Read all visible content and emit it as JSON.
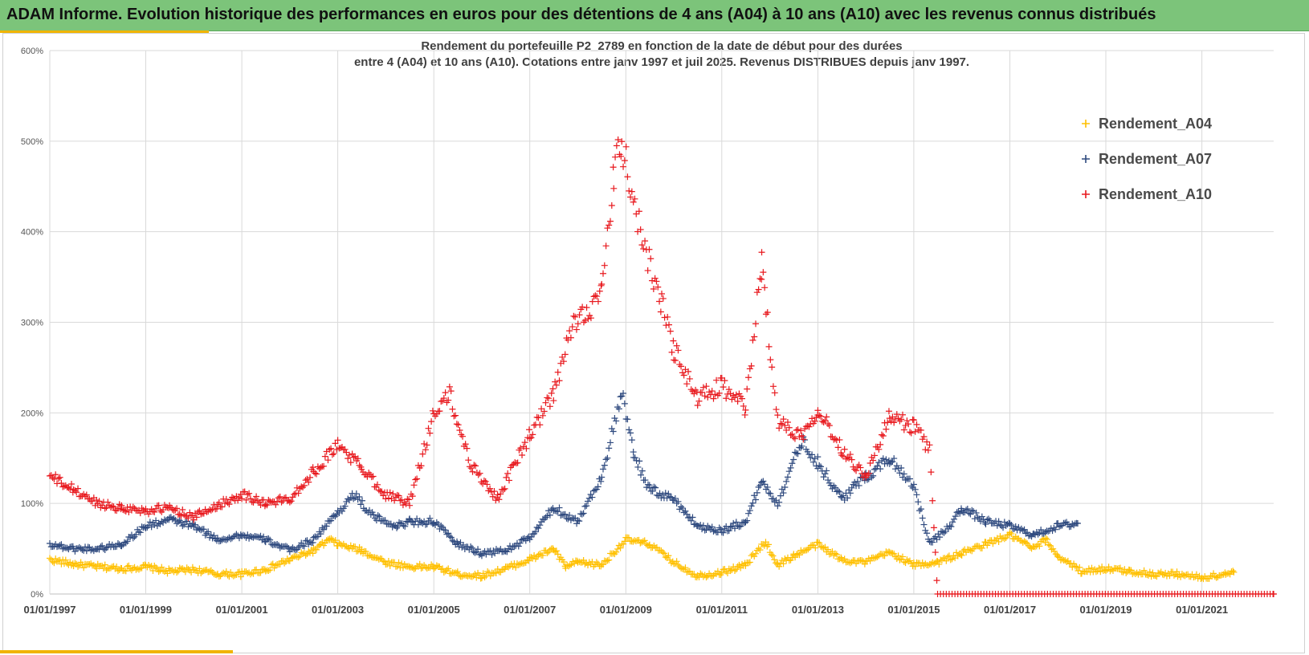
{
  "banner": {
    "title": "ADAM Informe. Evolution historique des performances en euros pour des détentions de 4 ans (A04) à 10 ans (A10) avec les revenus connus distribués"
  },
  "colors": {
    "banner": "#7cc47a",
    "accent": "#f0b400",
    "A04": "#ffc000",
    "A07": "#2f4a7f",
    "A10": "#e8191e"
  },
  "chart_data": {
    "type": "scatter",
    "title_lines": [
      "Rendement du portefeuille P2_2789 en fonction de la date de début pour des durées",
      "entre 4 (A04) et 10 ans (A10). Cotations  entre janv 1997 et juil 2025. Revenus DISTRIBUES depuis janv 1997."
    ],
    "xlabel": "",
    "ylabel": "",
    "xlim": [
      "01/01/1997",
      "01/07/2022"
    ],
    "ylim": [
      0,
      600
    ],
    "y_ticks": [
      0,
      100,
      200,
      300,
      400,
      500,
      600
    ],
    "y_tick_labels": [
      "0%",
      "100%",
      "200%",
      "300%",
      "400%",
      "500%",
      "600%"
    ],
    "x_ticks": [
      "01/01/1997",
      "01/01/1999",
      "01/01/2001",
      "01/01/2003",
      "01/01/2005",
      "01/01/2007",
      "01/01/2009",
      "01/01/2011",
      "01/01/2013",
      "01/01/2015",
      "01/01/2017",
      "01/01/2019",
      "01/01/2021"
    ],
    "grid": true,
    "legend_position": "top-right",
    "marker": "+",
    "series": [
      {
        "name": "Rendement_A04",
        "color": "#ffc000",
        "points": [
          [
            "1997-01-01",
            38
          ],
          [
            "1997-07-01",
            33
          ],
          [
            "1998-01-01",
            30
          ],
          [
            "1998-07-01",
            28
          ],
          [
            "1999-01-01",
            30
          ],
          [
            "1999-07-01",
            25
          ],
          [
            "2000-01-01",
            27
          ],
          [
            "2000-07-01",
            22
          ],
          [
            "2001-01-01",
            22
          ],
          [
            "2001-07-01",
            27
          ],
          [
            "2002-01-01",
            38
          ],
          [
            "2002-07-01",
            48
          ],
          [
            "2002-11-01",
            60
          ],
          [
            "2003-01-01",
            55
          ],
          [
            "2003-07-01",
            48
          ],
          [
            "2004-01-01",
            35
          ],
          [
            "2004-07-01",
            30
          ],
          [
            "2005-01-01",
            30
          ],
          [
            "2005-07-01",
            22
          ],
          [
            "2006-01-01",
            20
          ],
          [
            "2006-07-01",
            28
          ],
          [
            "2007-01-01",
            38
          ],
          [
            "2007-07-01",
            50
          ],
          [
            "2007-10-01",
            30
          ],
          [
            "2008-01-01",
            35
          ],
          [
            "2008-07-01",
            32
          ],
          [
            "2009-01-01",
            60
          ],
          [
            "2009-07-01",
            55
          ],
          [
            "2010-01-01",
            35
          ],
          [
            "2010-07-01",
            20
          ],
          [
            "2011-01-01",
            24
          ],
          [
            "2011-07-01",
            32
          ],
          [
            "2011-12-01",
            58
          ],
          [
            "2012-03-01",
            32
          ],
          [
            "2012-07-01",
            42
          ],
          [
            "2013-01-01",
            55
          ],
          [
            "2013-07-01",
            38
          ],
          [
            "2014-01-01",
            35
          ],
          [
            "2014-07-01",
            46
          ],
          [
            "2015-01-01",
            32
          ],
          [
            "2015-07-01",
            35
          ],
          [
            "2016-01-01",
            45
          ],
          [
            "2016-07-01",
            55
          ],
          [
            "2017-01-01",
            65
          ],
          [
            "2017-07-01",
            50
          ],
          [
            "2017-10-01",
            60
          ],
          [
            "2018-01-01",
            42
          ],
          [
            "2018-07-01",
            25
          ],
          [
            "2019-01-01",
            28
          ],
          [
            "2019-07-01",
            25
          ],
          [
            "2020-01-01",
            22
          ],
          [
            "2020-07-01",
            22
          ],
          [
            "2021-01-01",
            18
          ],
          [
            "2021-07-01",
            22
          ],
          [
            "2021-09-01",
            24
          ]
        ]
      },
      {
        "name": "Rendement_A07",
        "color": "#2f4a7f",
        "points": [
          [
            "1997-01-01",
            55
          ],
          [
            "1997-07-01",
            50
          ],
          [
            "1998-01-01",
            50
          ],
          [
            "1998-07-01",
            55
          ],
          [
            "1999-01-01",
            75
          ],
          [
            "1999-07-01",
            82
          ],
          [
            "2000-01-01",
            75
          ],
          [
            "2000-07-01",
            60
          ],
          [
            "2001-01-01",
            65
          ],
          [
            "2001-07-01",
            60
          ],
          [
            "2002-01-01",
            48
          ],
          [
            "2002-07-01",
            60
          ],
          [
            "2003-01-01",
            90
          ],
          [
            "2003-05-01",
            110
          ],
          [
            "2003-10-01",
            85
          ],
          [
            "2004-04-01",
            75
          ],
          [
            "2004-07-01",
            80
          ],
          [
            "2005-01-01",
            80
          ],
          [
            "2005-07-01",
            55
          ],
          [
            "2006-01-01",
            45
          ],
          [
            "2006-07-01",
            48
          ],
          [
            "2007-01-01",
            62
          ],
          [
            "2007-07-01",
            95
          ],
          [
            "2008-01-01",
            80
          ],
          [
            "2008-07-01",
            130
          ],
          [
            "2008-12-01",
            220
          ],
          [
            "2009-03-01",
            155
          ],
          [
            "2009-07-01",
            115
          ],
          [
            "2010-01-01",
            105
          ],
          [
            "2010-07-01",
            75
          ],
          [
            "2011-01-01",
            70
          ],
          [
            "2011-07-01",
            80
          ],
          [
            "2011-11-01",
            125
          ],
          [
            "2012-03-01",
            100
          ],
          [
            "2012-09-01",
            170
          ],
          [
            "2013-01-01",
            145
          ],
          [
            "2013-07-01",
            105
          ],
          [
            "2014-01-01",
            130
          ],
          [
            "2014-07-01",
            150
          ],
          [
            "2015-01-01",
            120
          ],
          [
            "2015-05-01",
            55
          ],
          [
            "2015-10-01",
            75
          ],
          [
            "2016-01-01",
            95
          ],
          [
            "2016-07-01",
            80
          ],
          [
            "2017-01-01",
            75
          ],
          [
            "2017-07-01",
            65
          ],
          [
            "2018-01-01",
            75
          ],
          [
            "2018-06-01",
            78
          ]
        ]
      },
      {
        "name": "Rendement_A10",
        "color": "#e8191e",
        "points": [
          [
            "1997-01-01",
            130
          ],
          [
            "1997-07-01",
            115
          ],
          [
            "1998-01-01",
            100
          ],
          [
            "1998-07-01",
            95
          ],
          [
            "1999-01-01",
            92
          ],
          [
            "1999-07-01",
            95
          ],
          [
            "2000-01-01",
            85
          ],
          [
            "2000-07-01",
            98
          ],
          [
            "2001-01-01",
            110
          ],
          [
            "2001-07-01",
            100
          ],
          [
            "2002-01-01",
            105
          ],
          [
            "2002-07-01",
            135
          ],
          [
            "2003-01-01",
            165
          ],
          [
            "2003-07-01",
            140
          ],
          [
            "2004-01-01",
            110
          ],
          [
            "2004-07-01",
            100
          ],
          [
            "2005-01-01",
            200
          ],
          [
            "2005-05-01",
            220
          ],
          [
            "2005-10-01",
            145
          ],
          [
            "2006-05-01",
            105
          ],
          [
            "2006-10-01",
            150
          ],
          [
            "2007-01-01",
            175
          ],
          [
            "2007-07-01",
            220
          ],
          [
            "2007-12-01",
            300
          ],
          [
            "2008-07-01",
            330
          ],
          [
            "2008-10-01",
            460
          ],
          [
            "2008-12-01",
            500
          ],
          [
            "2009-04-01",
            410
          ],
          [
            "2009-10-01",
            320
          ],
          [
            "2010-01-01",
            270
          ],
          [
            "2010-07-01",
            215
          ],
          [
            "2011-01-01",
            230
          ],
          [
            "2011-07-01",
            205
          ],
          [
            "2011-11-01",
            365
          ],
          [
            "2012-03-01",
            190
          ],
          [
            "2012-09-01",
            175
          ],
          [
            "2013-01-01",
            205
          ],
          [
            "2013-07-01",
            160
          ],
          [
            "2014-01-01",
            130
          ],
          [
            "2014-07-01",
            195
          ],
          [
            "2015-01-01",
            185
          ],
          [
            "2015-05-01",
            160
          ],
          [
            "2015-07-01",
            0
          ],
          [
            "2022-07-01",
            0
          ]
        ]
      }
    ]
  }
}
